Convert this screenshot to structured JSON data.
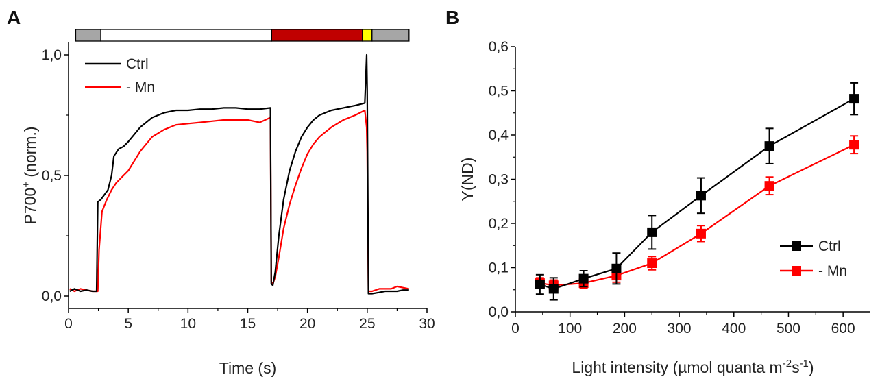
{
  "chart_data": [
    {
      "panel": "A",
      "type": "line",
      "xlabel": "Time (s)",
      "ylabel": "P700",
      "ylabel_sup": "+",
      "ylabel_suffix": " (norm.)",
      "xlim": [
        0,
        30
      ],
      "ylim": [
        0,
        1.0
      ],
      "xticks": [
        0,
        5,
        10,
        15,
        20,
        25,
        30
      ],
      "xtick_labels": [
        "0",
        "5",
        "10",
        "15",
        "20",
        "25",
        "30"
      ],
      "yticks": [
        0,
        0.5,
        1.0
      ],
      "ytick_labels": [
        "0,0",
        "0,5",
        "1,0"
      ],
      "legend_position": "top-left",
      "light_bar": [
        {
          "from": 0.6,
          "to": 2.7,
          "color": "#a6a6a6"
        },
        {
          "from": 2.7,
          "to": 17.0,
          "color": "#ffffff"
        },
        {
          "from": 17.0,
          "to": 24.6,
          "color": "#c00000"
        },
        {
          "from": 24.6,
          "to": 25.4,
          "color": "#ffff00"
        },
        {
          "from": 25.4,
          "to": 28.5,
          "color": "#a6a6a6"
        }
      ],
      "series": [
        {
          "name": "Ctrl",
          "color": "#000000",
          "x": [
            0.1,
            0.5,
            1.0,
            1.5,
            2.0,
            2.35,
            2.45,
            2.7,
            3.0,
            3.3,
            3.6,
            3.8,
            4.2,
            4.6,
            5.0,
            5.5,
            6.0,
            7.0,
            8.0,
            9.0,
            10.0,
            11.0,
            12.0,
            13.0,
            14.0,
            15.0,
            16.0,
            16.9,
            16.97,
            17.1,
            17.3,
            17.6,
            18.0,
            18.5,
            19.0,
            19.5,
            20.0,
            20.5,
            21.0,
            22.0,
            23.0,
            24.0,
            24.8,
            24.95,
            25.0,
            25.1,
            25.4,
            26.0,
            26.5,
            27.0,
            27.5,
            28.0,
            28.5
          ],
          "y": [
            0.02,
            0.03,
            0.02,
            0.025,
            0.02,
            0.02,
            0.39,
            0.4,
            0.42,
            0.44,
            0.5,
            0.58,
            0.61,
            0.62,
            0.64,
            0.67,
            0.7,
            0.74,
            0.76,
            0.77,
            0.77,
            0.775,
            0.775,
            0.78,
            0.78,
            0.775,
            0.775,
            0.78,
            0.05,
            0.045,
            0.1,
            0.25,
            0.4,
            0.52,
            0.6,
            0.66,
            0.7,
            0.73,
            0.75,
            0.77,
            0.78,
            0.79,
            0.8,
            1.0,
            0.85,
            0.01,
            0.01,
            0.015,
            0.02,
            0.02,
            0.02,
            0.025,
            0.025
          ]
        },
        {
          "name": "- Mn",
          "color": "#ff0000",
          "x": [
            0.1,
            0.5,
            1.0,
            1.5,
            2.0,
            2.45,
            2.55,
            2.8,
            3.2,
            3.6,
            4.0,
            4.4,
            5.0,
            5.5,
            6.0,
            7.0,
            8.0,
            9.0,
            10.0,
            11.0,
            12.0,
            13.0,
            14.0,
            15.0,
            16.0,
            16.9,
            16.97,
            17.1,
            17.3,
            17.6,
            18.0,
            18.5,
            19.0,
            19.5,
            20.0,
            20.5,
            21.0,
            22.0,
            23.0,
            24.0,
            24.8,
            24.95,
            25.0,
            25.1,
            25.4,
            26.0,
            26.5,
            27.0,
            27.5,
            28.0,
            28.5
          ],
          "y": [
            0.03,
            0.02,
            0.03,
            0.025,
            0.02,
            0.02,
            0.19,
            0.35,
            0.4,
            0.44,
            0.47,
            0.49,
            0.52,
            0.56,
            0.6,
            0.66,
            0.69,
            0.71,
            0.715,
            0.72,
            0.725,
            0.73,
            0.73,
            0.73,
            0.72,
            0.74,
            0.06,
            0.05,
            0.08,
            0.16,
            0.28,
            0.38,
            0.46,
            0.53,
            0.59,
            0.63,
            0.66,
            0.7,
            0.73,
            0.75,
            0.77,
            0.7,
            0.6,
            0.02,
            0.02,
            0.03,
            0.03,
            0.03,
            0.04,
            0.035,
            0.03
          ]
        }
      ]
    },
    {
      "panel": "B",
      "type": "line",
      "xlabel": "Light intensity (µmol quanta m",
      "xlabel_sup1": "-2",
      "xlabel_mid": "s",
      "xlabel_sup2": "-1",
      "xlabel_end": ")",
      "ylabel": "Y(ND)",
      "xlim": [
        0,
        650
      ],
      "ylim": [
        0,
        0.6
      ],
      "xticks": [
        0,
        100,
        200,
        300,
        400,
        500,
        600
      ],
      "xtick_labels": [
        "0",
        "100",
        "200",
        "300",
        "400",
        "500",
        "600"
      ],
      "yticks": [
        0,
        0.1,
        0.2,
        0.3,
        0.4,
        0.5,
        0.6
      ],
      "ytick_labels": [
        "0,0",
        "0,1",
        "0,2",
        "0,3",
        "0,4",
        "0,5",
        "0,6"
      ],
      "legend_position": "bottom-right",
      "series": [
        {
          "name": "Ctrl",
          "color": "#000000",
          "x": [
            45,
            70,
            125,
            185,
            250,
            340,
            465,
            620
          ],
          "y": [
            0.062,
            0.052,
            0.075,
            0.098,
            0.18,
            0.263,
            0.375,
            0.482
          ],
          "err": [
            0.022,
            0.025,
            0.018,
            0.035,
            0.038,
            0.04,
            0.04,
            0.036
          ]
        },
        {
          "name": "- Mn",
          "color": "#ff0000",
          "x": [
            45,
            70,
            125,
            185,
            250,
            340,
            465,
            620
          ],
          "y": [
            0.065,
            0.06,
            0.065,
            0.082,
            0.11,
            0.177,
            0.285,
            0.378
          ],
          "err": [
            0.012,
            0.012,
            0.012,
            0.015,
            0.015,
            0.018,
            0.02,
            0.02
          ]
        }
      ]
    }
  ]
}
